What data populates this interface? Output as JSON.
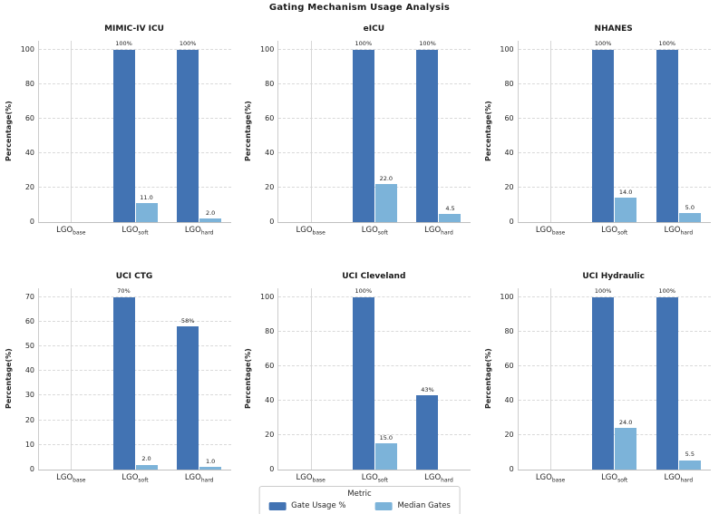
{
  "figure_title": "Gating Mechanism Usage Analysis",
  "colors": {
    "gate_usage": "#4273b3",
    "median_gates": "#7cb3d9",
    "grid": "#d9d9d9",
    "text": "#262626"
  },
  "legend": {
    "title": "Metric",
    "entries": [
      {
        "key": "gate_usage",
        "label": "Gate Usage %"
      },
      {
        "key": "median_gates",
        "label": "Median Gates"
      }
    ]
  },
  "category_display": [
    {
      "text": "LGO",
      "sub": "base"
    },
    {
      "text": "LGO",
      "sub": "soft"
    },
    {
      "text": "LGO",
      "sub": "hard"
    }
  ],
  "chart_data": [
    {
      "type": "bar",
      "title": "MIMIC-IV ICU",
      "ylabel": "Percentage(%)",
      "ylim": [
        0,
        105
      ],
      "yticks": [
        0,
        20,
        40,
        60,
        80,
        100
      ],
      "categories": [
        "LGO_base",
        "LGO_soft",
        "LGO_hard"
      ],
      "series": [
        {
          "name": "Gate Usage %",
          "key": "gate_usage",
          "values": [
            0,
            100,
            100
          ],
          "labels": [
            "",
            "100%",
            "100%"
          ]
        },
        {
          "name": "Median Gates",
          "key": "median_gates",
          "values": [
            0,
            11.0,
            2.0
          ],
          "labels": [
            "",
            "11.0",
            "2.0"
          ]
        }
      ]
    },
    {
      "type": "bar",
      "title": "eICU",
      "ylabel": "Percentage(%)",
      "ylim": [
        0,
        105
      ],
      "yticks": [
        0,
        20,
        40,
        60,
        80,
        100
      ],
      "categories": [
        "LGO_base",
        "LGO_soft",
        "LGO_hard"
      ],
      "series": [
        {
          "name": "Gate Usage %",
          "key": "gate_usage",
          "values": [
            0,
            100,
            100
          ],
          "labels": [
            "",
            "100%",
            "100%"
          ]
        },
        {
          "name": "Median Gates",
          "key": "median_gates",
          "values": [
            0,
            22.0,
            4.5
          ],
          "labels": [
            "",
            "22.0",
            "4.5"
          ]
        }
      ]
    },
    {
      "type": "bar",
      "title": "NHANES",
      "ylabel": "Percentage(%)",
      "ylim": [
        0,
        105
      ],
      "yticks": [
        0,
        20,
        40,
        60,
        80,
        100
      ],
      "categories": [
        "LGO_base",
        "LGO_soft",
        "LGO_hard"
      ],
      "series": [
        {
          "name": "Gate Usage %",
          "key": "gate_usage",
          "values": [
            0,
            100,
            100
          ],
          "labels": [
            "",
            "100%",
            "100%"
          ]
        },
        {
          "name": "Median Gates",
          "key": "median_gates",
          "values": [
            0,
            14.0,
            5.0
          ],
          "labels": [
            "",
            "14.0",
            "5.0"
          ]
        }
      ]
    },
    {
      "type": "bar",
      "title": "UCI CTG",
      "ylabel": "Percentage(%)",
      "ylim": [
        0,
        73.5
      ],
      "yticks": [
        0,
        10,
        20,
        30,
        40,
        50,
        60,
        70
      ],
      "categories": [
        "LGO_base",
        "LGO_soft",
        "LGO_hard"
      ],
      "series": [
        {
          "name": "Gate Usage %",
          "key": "gate_usage",
          "values": [
            0,
            70,
            58
          ],
          "labels": [
            "",
            "70%",
            "58%"
          ]
        },
        {
          "name": "Median Gates",
          "key": "median_gates",
          "values": [
            0,
            2.0,
            1.0
          ],
          "labels": [
            "",
            "2.0",
            "1.0"
          ]
        }
      ]
    },
    {
      "type": "bar",
      "title": "UCI Cleveland",
      "ylabel": "Percentage(%)",
      "ylim": [
        0,
        105
      ],
      "yticks": [
        0,
        20,
        40,
        60,
        80,
        100
      ],
      "categories": [
        "LGO_base",
        "LGO_soft",
        "LGO_hard"
      ],
      "series": [
        {
          "name": "Gate Usage %",
          "key": "gate_usage",
          "values": [
            0,
            100,
            43
          ],
          "labels": [
            "",
            "100%",
            "43%"
          ]
        },
        {
          "name": "Median Gates",
          "key": "median_gates",
          "values": [
            0,
            15.0,
            0
          ],
          "labels": [
            "",
            "15.0",
            ""
          ]
        }
      ]
    },
    {
      "type": "bar",
      "title": "UCI Hydraulic",
      "ylabel": "Percentage(%)",
      "ylim": [
        0,
        105
      ],
      "yticks": [
        0,
        20,
        40,
        60,
        80,
        100
      ],
      "categories": [
        "LGO_base",
        "LGO_soft",
        "LGO_hard"
      ],
      "series": [
        {
          "name": "Gate Usage %",
          "key": "gate_usage",
          "values": [
            0,
            100,
            100
          ],
          "labels": [
            "",
            "100%",
            "100%"
          ]
        },
        {
          "name": "Median Gates",
          "key": "median_gates",
          "values": [
            0,
            24.0,
            5.5
          ],
          "labels": [
            "",
            "24.0",
            "5.5"
          ]
        }
      ]
    }
  ]
}
